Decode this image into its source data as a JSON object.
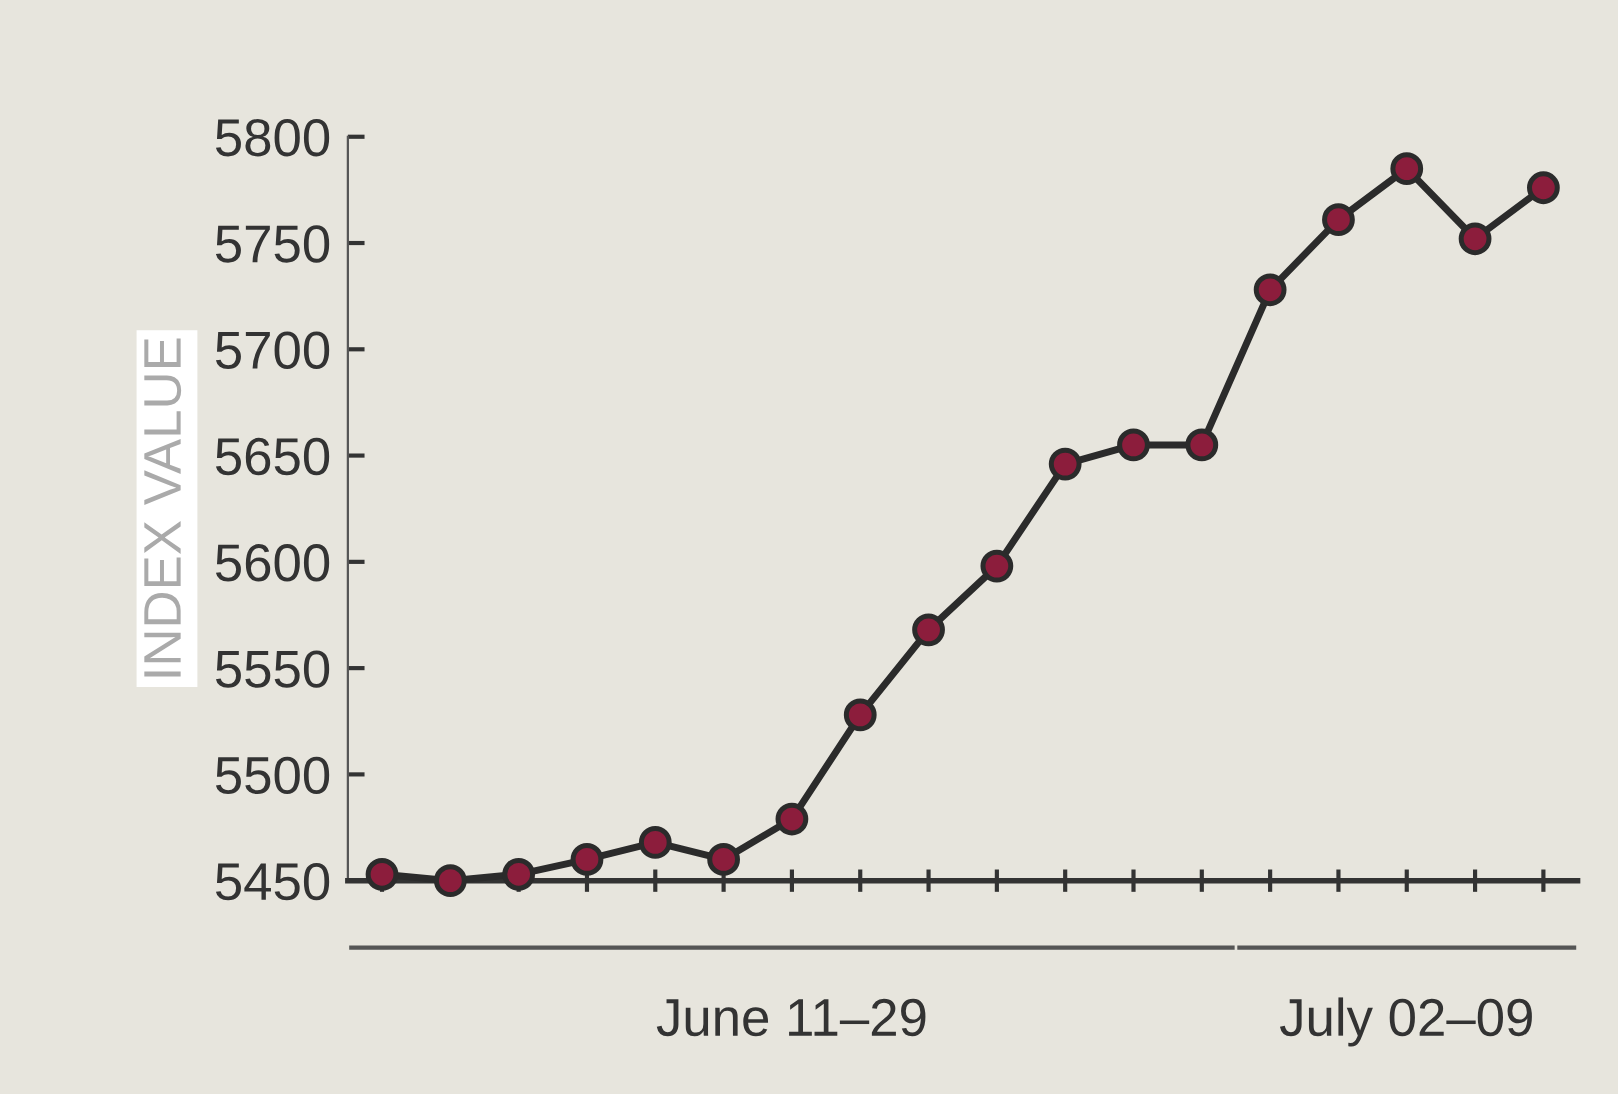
{
  "chart_data": {
    "type": "line",
    "ylabel": "INDEX VALUE",
    "categories": [
      null,
      null,
      null,
      null,
      null,
      null,
      null,
      null,
      null,
      null,
      null,
      null,
      null,
      null,
      null,
      null,
      null,
      null
    ],
    "series": [
      {
        "color": "#2b2b2b",
        "values": [
          5453,
          5450,
          5453,
          5460,
          5468,
          5460,
          5479,
          5528,
          5568,
          5598,
          5646,
          5655,
          5655,
          5728,
          5761,
          5785,
          5752,
          5776
        ]
      }
    ],
    "ylim": [
      5450,
      5800
    ],
    "yticks": [
      5450,
      5500,
      5550,
      5600,
      5650,
      5700,
      5750,
      5800
    ],
    "marker": "circle",
    "line_style": "solid",
    "grid": false,
    "annotations": [
      "June 11–29",
      "July 02–09"
    ]
  }
}
